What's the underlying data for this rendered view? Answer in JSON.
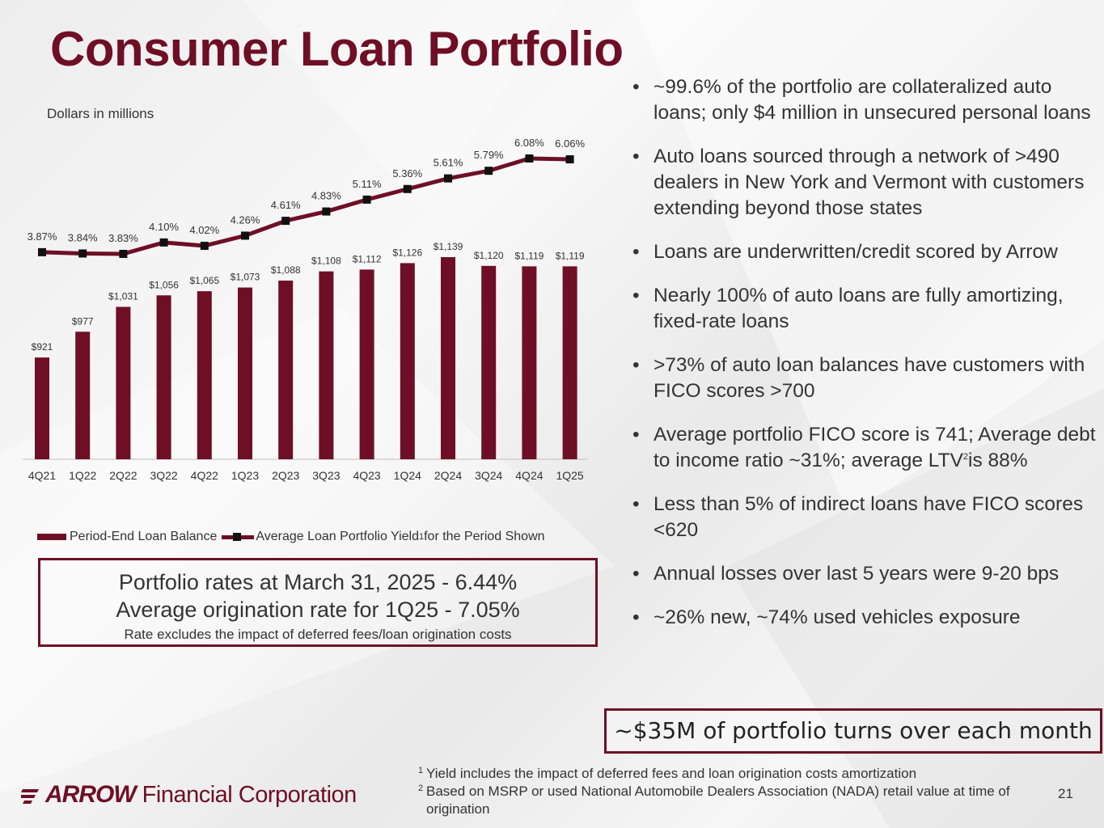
{
  "title": "Consumer Loan Portfolio",
  "subtitle": "Dollars in millions",
  "colors": {
    "accent": "#6e0f25",
    "line_marker": "#111111"
  },
  "chart_data": {
    "type": "bar",
    "categories": [
      "4Q21",
      "1Q22",
      "2Q22",
      "3Q22",
      "4Q22",
      "1Q23",
      "2Q23",
      "3Q23",
      "4Q23",
      "1Q24",
      "2Q24",
      "3Q24",
      "4Q24",
      "1Q25"
    ],
    "series": [
      {
        "name": "Period-End Loan Balance",
        "type": "bar",
        "values": [
          921,
          977,
          1031,
          1056,
          1065,
          1073,
          1088,
          1108,
          1112,
          1126,
          1139,
          1120,
          1119,
          1119
        ],
        "labels": [
          "$921",
          "$977",
          "$1,031",
          "$1,056",
          "$1,065",
          "$1,073",
          "$1,088",
          "$1,108",
          "$1,112",
          "$1,126",
          "$1,139",
          "$1,120",
          "$1,119",
          "$1,119"
        ]
      },
      {
        "name": "Average Loan Portfolio Yield for the Period Shown",
        "type": "line",
        "values": [
          3.87,
          3.84,
          3.83,
          4.1,
          4.02,
          4.26,
          4.61,
          4.83,
          5.11,
          5.36,
          5.61,
          5.79,
          6.08,
          6.06
        ],
        "labels": [
          "3.87%",
          "3.84%",
          "3.83%",
          "4.10%",
          "4.02%",
          "4.26%",
          "4.61%",
          "4.83%",
          "5.11%",
          "5.36%",
          "5.61%",
          "5.79%",
          "6.08%",
          "6.06%"
        ]
      }
    ],
    "legend_placement": "bottom",
    "grid": false
  },
  "legend": {
    "bar_label": "Period-End Loan Balance",
    "line_label_pre": "Average Loan Portfolio Yield",
    "line_sup": "1",
    "line_label_post": "for the Period Shown"
  },
  "rates_box": {
    "line1": "Portfolio rates at March 31, 2025 - 6.44%",
    "line2": "Average origination rate for 1Q25 - 7.05%",
    "note": "Rate excludes the impact of deferred fees/loan origination costs"
  },
  "bullets": [
    "~99.6% of the portfolio are collateralized auto loans; only $4 million in unsecured personal loans",
    "Auto loans sourced through a network of >490 dealers in New York and Vermont with customers extending beyond those states",
    "Loans are underwritten/credit scored by Arrow",
    "Nearly 100% of auto loans are fully amortizing, fixed-rate loans",
    ">73% of auto loan balances have customers with FICO scores >700",
    "~26% new, ~74% used vehicles exposure"
  ],
  "bullet_fico": {
    "pre": "Average portfolio FICO score is 741; Average debt to income ratio ~31%; average LTV",
    "sup": "2",
    "post": "is 88%"
  },
  "bullets_after": [
    "Less than 5% of indirect loans have FICO scores <620",
    "Annual losses over last 5 years were 9-20 bps"
  ],
  "turnover": "~$35M of portfolio turns over each month",
  "footnotes": [
    {
      "num": "1",
      "text": "Yield includes the impact of deferred fees and loan origination costs amortization"
    },
    {
      "num": "2",
      "text": "Based on MSRP or used National Automobile Dealers Association (NADA) retail value at time of origination"
    }
  ],
  "page_number": "21",
  "logo": {
    "word": "ARROW",
    "rest": "Financial Corporation"
  }
}
